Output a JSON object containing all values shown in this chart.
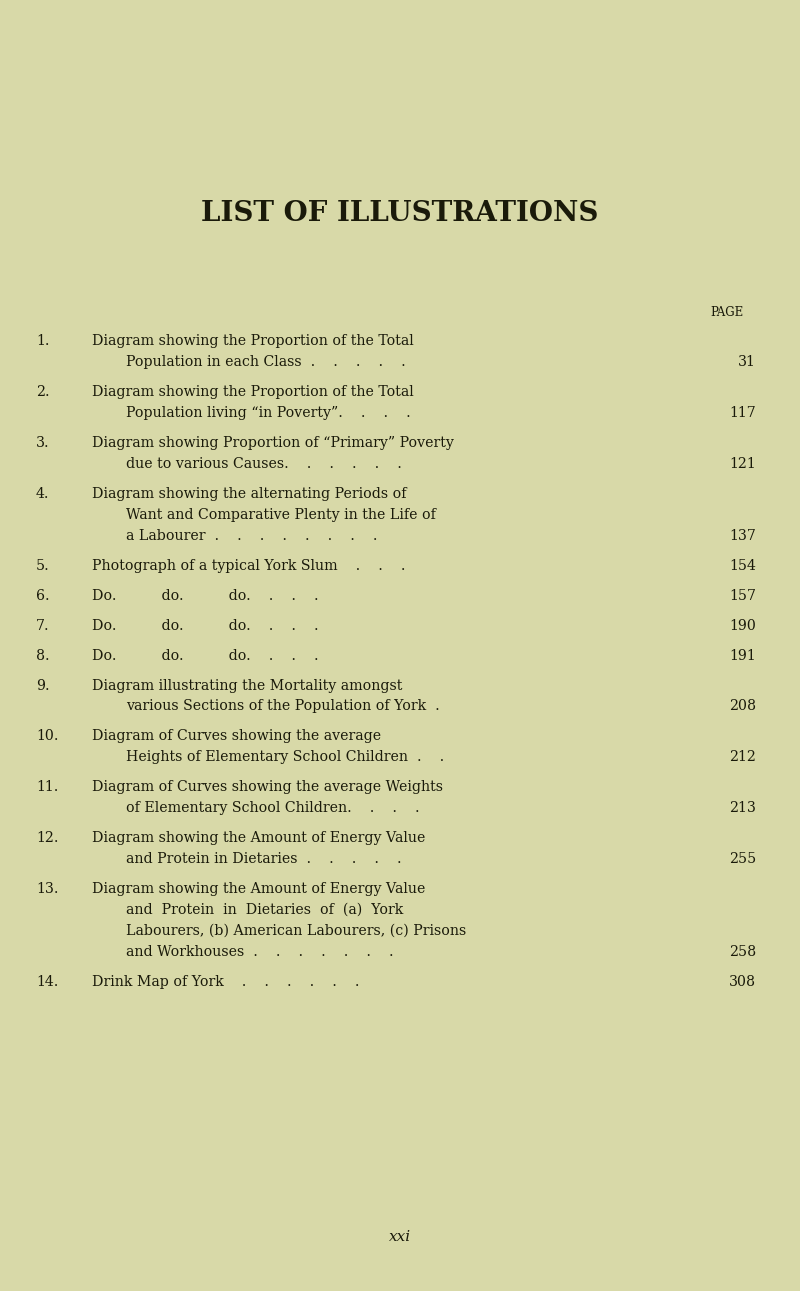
{
  "bg_color": "#d8d9a8",
  "text_color": "#1a1a0a",
  "title": "LIST OF ILLUSTRATIONS",
  "page_label": "PAGE",
  "footer": "xxi",
  "entries": [
    {
      "num": "1.",
      "lines": [
        "Diagram showing the Proportion of the Total",
        "Population in each Class  .    .    .    .    ."
      ],
      "page": "31",
      "indent_second": true
    },
    {
      "num": "2.",
      "lines": [
        "Diagram showing the Proportion of the Total",
        "Population living “in Poverty”.    .    .    ."
      ],
      "page": "117",
      "indent_second": true
    },
    {
      "num": "3.",
      "lines": [
        "Diagram showing Proportion of “Primary” Poverty",
        "due to various Causes.    .    .    .    .    ."
      ],
      "page": "121",
      "indent_second": true
    },
    {
      "num": "4.",
      "lines": [
        "Diagram showing the alternating Periods of",
        "Want and Comparative Plenty in the Life of",
        "a Labourer  .    .    .    .    .    .    .    ."
      ],
      "page": "137",
      "indent_second": true
    },
    {
      "num": "5.",
      "lines": [
        "Photograph of a typical York Slum    .    .    ."
      ],
      "page": "154",
      "indent_second": false
    },
    {
      "num": "6.",
      "lines": [
        "Do.          do.          do.    .    .    ."
      ],
      "page": "157",
      "indent_second": false
    },
    {
      "num": "7.",
      "lines": [
        "Do.          do.          do.    .    .    ."
      ],
      "page": "190",
      "indent_second": false
    },
    {
      "num": "8.",
      "lines": [
        "Do.          do.          do.    .    .    ."
      ],
      "page": "191",
      "indent_second": false
    },
    {
      "num": "9.",
      "lines": [
        "Diagram illustrating the Mortality amongst",
        "various Sections of the Population of York  ."
      ],
      "page": "208",
      "indent_second": true
    },
    {
      "num": "10.",
      "lines": [
        "Diagram of Curves showing the average",
        "Heights of Elementary School Children  .    ."
      ],
      "page": "212",
      "indent_second": true
    },
    {
      "num": "11.",
      "lines": [
        "Diagram of Curves showing the average Weights",
        "of Elementary School Children.    .    .    ."
      ],
      "page": "213",
      "indent_second": true
    },
    {
      "num": "12.",
      "lines": [
        "Diagram showing the Amount of Energy Value",
        "and Protein in Dietaries  .    .    .    .    ."
      ],
      "page": "255",
      "indent_second": true
    },
    {
      "num": "13.",
      "lines": [
        "Diagram showing the Amount of Energy Value",
        "and  Protein  in  Dietaries  of  (a)  York",
        "Labourers, (b) American Labourers, (c) Prisons",
        "and Workhouses  .    .    .    .    .    .    ."
      ],
      "page": "258",
      "indent_second": true
    },
    {
      "num": "14.",
      "lines": [
        "Drink Map of York    .    .    .    .    .    ."
      ],
      "page": "308",
      "indent_second": false
    }
  ]
}
